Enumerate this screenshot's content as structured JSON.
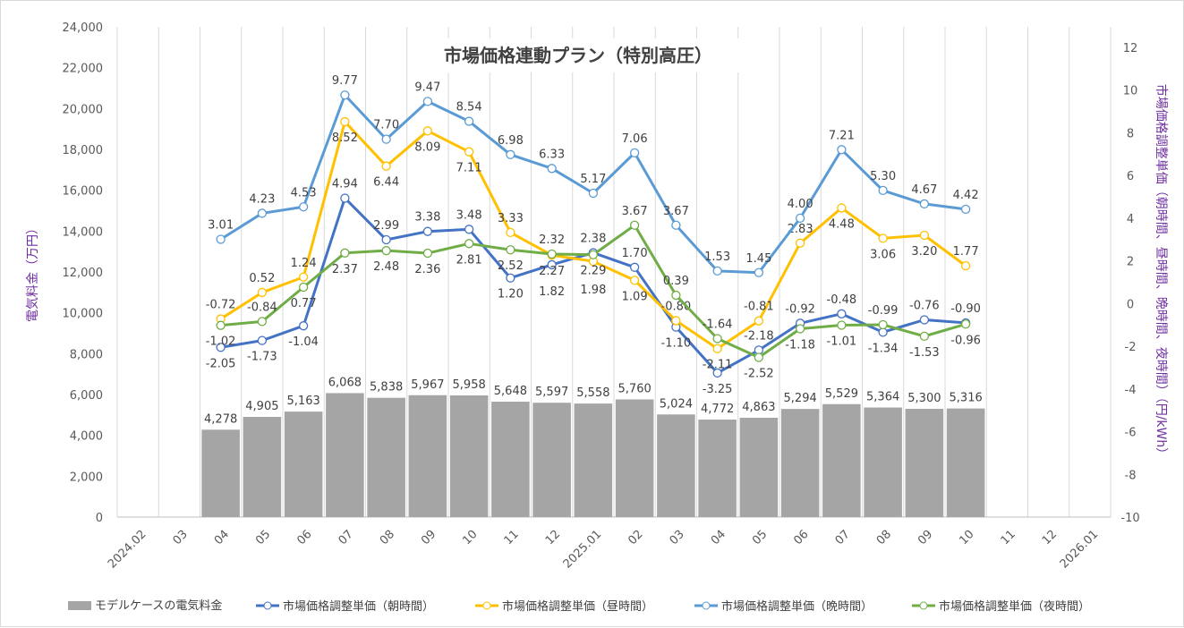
{
  "chart_data": {
    "type": "bar+line",
    "title": "市場価格連動プラン（特別高圧）",
    "ylabel": "電気料金（万円）",
    "y2label": "市場価格調整単価（朝時間、昼時間、晩時間、夜時間）（円/kWh）",
    "ylim": [
      0,
      24000
    ],
    "y2lim": [
      -10,
      12
    ],
    "yticks": [
      "0",
      "2,000",
      "4,000",
      "6,000",
      "8,000",
      "10,000",
      "12,000",
      "14,000",
      "16,000",
      "18,000",
      "20,000",
      "22,000",
      "24,000"
    ],
    "y2ticks": [
      "-10",
      "-8",
      "-6",
      "-4",
      "-2",
      "0",
      "2",
      "4",
      "6",
      "8",
      "10",
      "12"
    ],
    "grid": true,
    "legend": "bottom",
    "categories": [
      "2024.02",
      "03",
      "04",
      "05",
      "06",
      "07",
      "08",
      "09",
      "10",
      "11",
      "12",
      "2025.01",
      "02",
      "03",
      "04",
      "05",
      "06",
      "07",
      "08",
      "09",
      "10",
      "11",
      "12",
      "2026.01"
    ],
    "bars": {
      "name": "モデルケースの電気料金",
      "color": "#a5a5a5",
      "values": [
        null,
        null,
        4278,
        4905,
        5163,
        6068,
        5838,
        5967,
        5958,
        5648,
        5597,
        5558,
        5760,
        5024,
        4772,
        4863,
        5294,
        5529,
        5364,
        5300,
        5316,
        null,
        null,
        null
      ],
      "labels": [
        null,
        null,
        "4,278",
        "4,905",
        "5,163",
        "6,068",
        "5,838",
        "5,967",
        "5,958",
        "5,648",
        "5,597",
        "5,558",
        "5,760",
        "5,024",
        "4,772",
        "4,863",
        "5,294",
        "5,529",
        "5,364",
        "5,300",
        "5,316",
        null,
        null,
        null
      ]
    },
    "series": [
      {
        "name": "市場価格調整単価（朝時間）",
        "color": "#4472c4",
        "values": [
          null,
          null,
          -2.05,
          -1.73,
          -1.04,
          4.94,
          2.99,
          3.38,
          3.48,
          1.2,
          1.82,
          2.38,
          1.7,
          -1.1,
          -3.25,
          -2.18,
          -0.92,
          -0.48,
          -1.34,
          -0.76,
          -0.9,
          null,
          null,
          null
        ]
      },
      {
        "name": "市場価格調整単価（昼時間）",
        "color": "#ffc000",
        "values": [
          null,
          null,
          -0.72,
          0.52,
          1.24,
          8.52,
          6.44,
          8.09,
          7.11,
          3.33,
          2.27,
          1.98,
          1.09,
          -0.8,
          -2.11,
          -0.81,
          2.83,
          4.48,
          3.06,
          3.2,
          1.77,
          null,
          null,
          null
        ]
      },
      {
        "name": "市場価格調整単価（晩時間）",
        "color": "#5b9bd5",
        "values": [
          null,
          null,
          3.01,
          4.23,
          4.53,
          9.77,
          7.7,
          9.47,
          8.54,
          6.98,
          6.33,
          5.17,
          7.06,
          3.67,
          1.53,
          1.45,
          4.0,
          7.21,
          5.3,
          4.67,
          4.42,
          null,
          null,
          null
        ]
      },
      {
        "name": "市場価格調整単価（夜時間）",
        "color": "#70ad47",
        "values": [
          null,
          null,
          -1.02,
          -0.84,
          0.77,
          2.37,
          2.48,
          2.36,
          2.81,
          2.52,
          2.32,
          2.29,
          3.67,
          0.39,
          -1.64,
          -2.52,
          -1.18,
          -1.01,
          -0.99,
          -1.53,
          -0.96,
          null,
          null,
          null
        ]
      }
    ]
  }
}
